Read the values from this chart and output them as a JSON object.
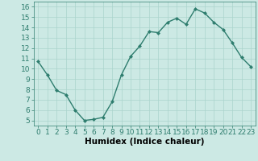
{
  "x": [
    0,
    1,
    2,
    3,
    4,
    5,
    6,
    7,
    8,
    9,
    10,
    11,
    12,
    13,
    14,
    15,
    16,
    17,
    18,
    19,
    20,
    21,
    22,
    23
  ],
  "y": [
    10.7,
    9.4,
    7.9,
    7.5,
    6.0,
    5.0,
    5.1,
    5.3,
    6.8,
    9.4,
    11.2,
    12.2,
    13.6,
    13.5,
    14.5,
    14.9,
    14.3,
    15.8,
    15.4,
    14.5,
    13.8,
    12.5,
    11.1,
    10.2
  ],
  "line_color": "#2e7d6e",
  "marker": "D",
  "marker_size": 2.0,
  "bg_color": "#cce9e4",
  "grid_color": "#aad4cc",
  "xlabel": "Humidex (Indice chaleur)",
  "xlim": [
    -0.5,
    23.5
  ],
  "ylim": [
    4.5,
    16.5
  ],
  "yticks": [
    5,
    6,
    7,
    8,
    9,
    10,
    11,
    12,
    13,
    14,
    15,
    16
  ],
  "xticks": [
    0,
    1,
    2,
    3,
    4,
    5,
    6,
    7,
    8,
    9,
    10,
    11,
    12,
    13,
    14,
    15,
    16,
    17,
    18,
    19,
    20,
    21,
    22,
    23
  ],
  "xlabel_fontsize": 7.5,
  "tick_fontsize": 6.5,
  "linewidth": 1.0
}
